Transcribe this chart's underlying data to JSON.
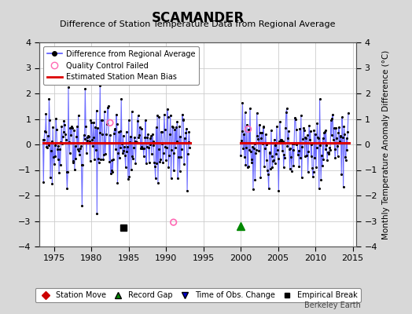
{
  "title": "SCAMANDER",
  "subtitle": "Difference of Station Temperature Data from Regional Average",
  "ylabel": "Monthly Temperature Anomaly Difference (°C)",
  "xlim": [
    1973.0,
    2015.5
  ],
  "ylim": [
    -4,
    4
  ],
  "yticks": [
    -4,
    -3,
    -2,
    -1,
    0,
    1,
    2,
    3,
    4
  ],
  "xticks": [
    1975,
    1980,
    1985,
    1990,
    1995,
    2000,
    2005,
    2010,
    2015
  ],
  "background_color": "#d8d8d8",
  "plot_bg_color": "#ffffff",
  "line_color": "#5555ff",
  "marker_color": "#000000",
  "bias_color": "#dd0000",
  "qc_color": "#ff69b4",
  "period1_start": 1973.5,
  "period1_end": 1993.25,
  "period2_start": 2000.0,
  "period2_end": 2014.5,
  "bias_y": 0.05,
  "empirical_break_x": 1984.25,
  "record_gap_x": 2000.0,
  "qc_fail_x1": 1982.5,
  "qc_fail_y1": 0.85,
  "qc_fail_x2": 1991.0,
  "qc_fail_y2": -3.05,
  "qc_fail_x3": 2001.0,
  "qc_fail_y3": 0.6,
  "berkeley_earth_text": "Berkeley Earth",
  "seed": 17
}
